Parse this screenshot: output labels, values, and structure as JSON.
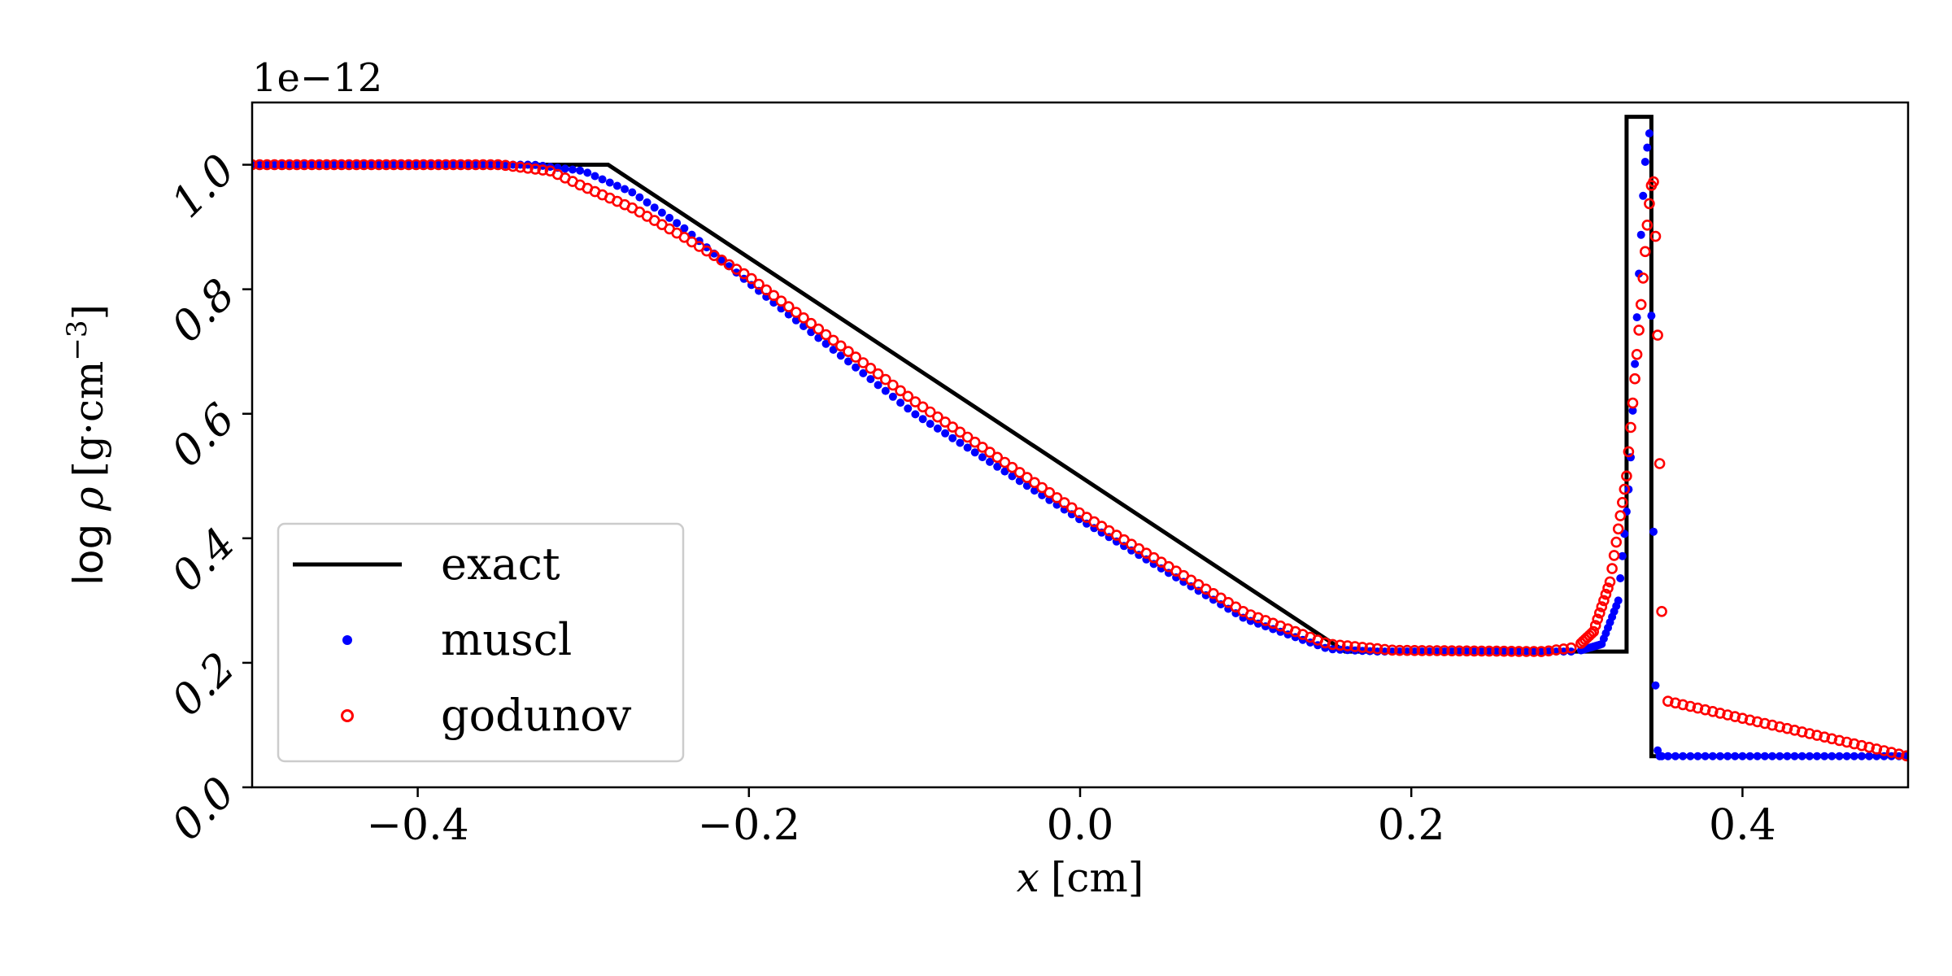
{
  "chart_data": {
    "type": "line",
    "xlabel_var": "x",
    "xlabel_unit": "[cm]",
    "ylabel_prefix": "log ",
    "ylabel_var": "ρ",
    "ylabel_unit_base": "[g·cm",
    "ylabel_unit_exp": "−3",
    "ylabel_unit_close": "]",
    "offset_text": "1e−12",
    "xlim": [
      -0.5,
      0.5
    ],
    "ylim": [
      0.0,
      1.1
    ],
    "xticks": [
      -0.4,
      -0.2,
      0.0,
      0.2,
      0.4
    ],
    "xtick_labels": [
      "−0.4",
      "−0.2",
      "0.0",
      "0.2",
      "0.4"
    ],
    "yticks": [
      0.0,
      0.2,
      0.4,
      0.6,
      0.8,
      1.0
    ],
    "ytick_labels": [
      "0.0",
      "0.2",
      "0.4",
      "0.6",
      "0.8",
      "1.0"
    ],
    "grid": false,
    "legend_position": "lower-left",
    "colors": {
      "exact": "#000000",
      "muscl": "#0000ff",
      "godunov": "#ff0000"
    },
    "series": [
      {
        "name": "exact",
        "style": "line",
        "x": [
          -0.5,
          -0.285,
          0.16,
          0.33,
          0.33,
          0.345,
          0.345,
          0.5
        ],
        "y": [
          1.0,
          1.0,
          0.218,
          0.218,
          1.077,
          1.077,
          0.05,
          0.05
        ]
      },
      {
        "name": "muscl",
        "style": "filled-dots",
        "x": [
          -0.5,
          -0.33,
          -0.3,
          -0.27,
          -0.24,
          -0.2,
          -0.1,
          0.0,
          0.1,
          0.15,
          0.18,
          0.3,
          0.315,
          0.325,
          0.332,
          0.337,
          0.341,
          0.344,
          0.346,
          0.348,
          0.35,
          0.5
        ],
        "y": [
          1.0,
          1.0,
          0.99,
          0.955,
          0.9,
          0.81,
          0.6,
          0.43,
          0.27,
          0.222,
          0.218,
          0.218,
          0.23,
          0.3,
          0.5,
          0.8,
          1.0,
          1.055,
          0.46,
          0.065,
          0.05,
          0.05
        ]
      },
      {
        "name": "godunov",
        "style": "open-dots",
        "x": [
          -0.5,
          -0.35,
          -0.32,
          -0.3,
          -0.27,
          -0.24,
          -0.2,
          -0.1,
          0.0,
          0.1,
          0.15,
          0.19,
          0.28,
          0.3,
          0.31,
          0.32,
          0.33,
          0.338,
          0.343,
          0.346,
          0.348,
          0.35,
          0.352,
          0.5
        ],
        "y": [
          1.0,
          1.0,
          0.99,
          0.965,
          0.93,
          0.885,
          0.82,
          0.62,
          0.44,
          0.28,
          0.23,
          0.22,
          0.218,
          0.225,
          0.25,
          0.33,
          0.5,
          0.75,
          0.92,
          0.99,
          0.85,
          0.52,
          0.14,
          0.05
        ]
      }
    ]
  }
}
